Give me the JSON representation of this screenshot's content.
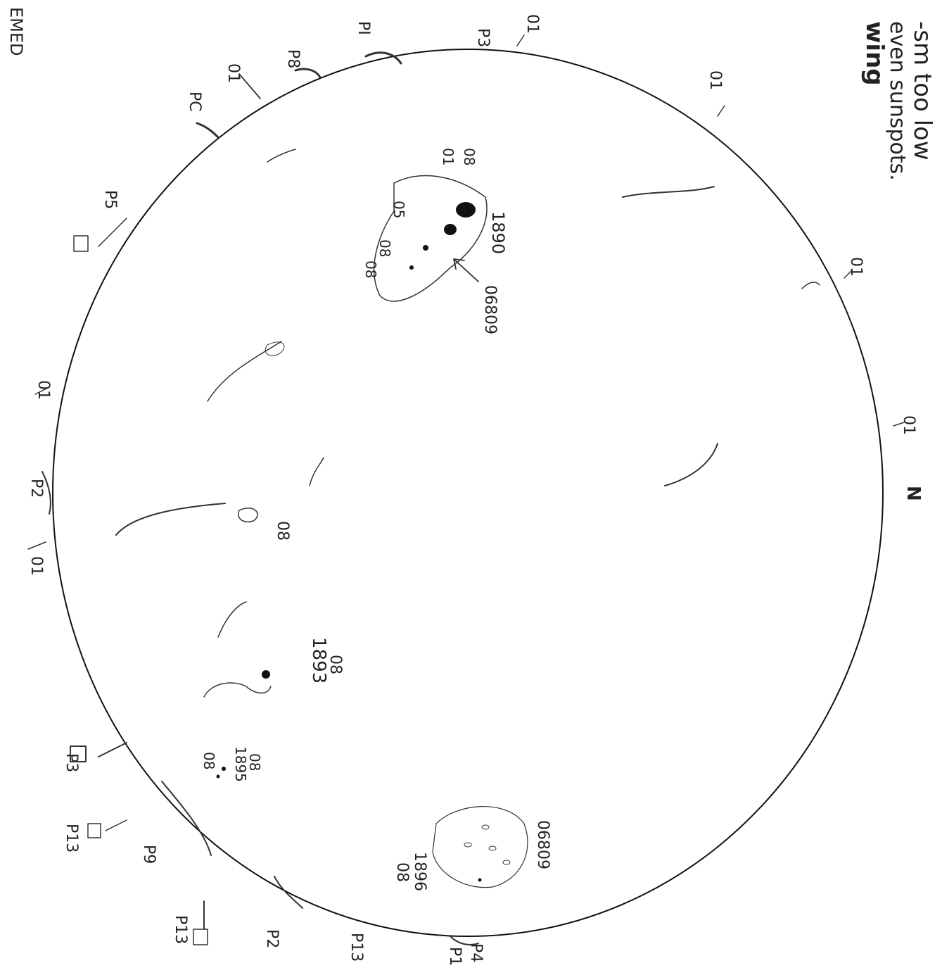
{
  "sheet": {
    "top_note_1": "-sm too low",
    "top_note_2": "even sunspots.",
    "top_note_bold": "wing",
    "edge_label": "EMED",
    "north_label": "N"
  },
  "regions": [
    {
      "label": "1890",
      "codes": [
        "08",
        "01",
        "05",
        "08",
        "08"
      ],
      "note": "06809"
    },
    {
      "label": "1893",
      "codes": [
        "08"
      ]
    },
    {
      "label": "1895",
      "codes": [
        "08",
        "08"
      ]
    },
    {
      "label": "1896",
      "codes": [
        "08"
      ],
      "note": "06809"
    }
  ],
  "limb_marks": [
    {
      "text": "01"
    },
    {
      "text": "01"
    },
    {
      "text": "01"
    },
    {
      "text": "01"
    },
    {
      "text": "01"
    },
    {
      "text": "01"
    },
    {
      "text": "01"
    },
    {
      "text": "P8"
    },
    {
      "text": "PC"
    },
    {
      "text": "P5"
    },
    {
      "text": "P2"
    },
    {
      "text": "P3"
    },
    {
      "text": "P13"
    },
    {
      "text": "P9"
    },
    {
      "text": "P13"
    },
    {
      "text": "P2"
    },
    {
      "text": "P13"
    },
    {
      "text": "P1"
    },
    {
      "text": "P4"
    },
    {
      "text": "P3"
    },
    {
      "text": "PI"
    }
  ],
  "standalone": [
    {
      "text": "08"
    }
  ],
  "colors": {
    "ink": "#222222",
    "paper": "#ffffff"
  }
}
